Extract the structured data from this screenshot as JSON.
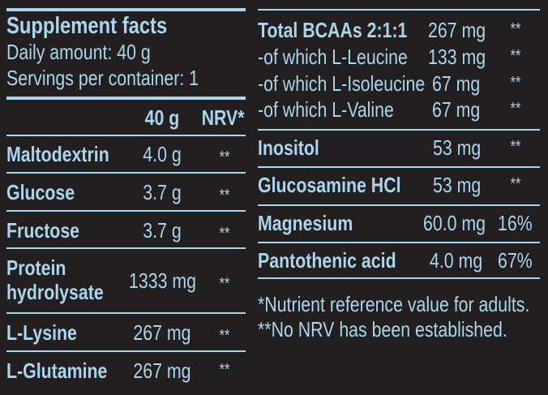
{
  "colors": {
    "background": "#231f20",
    "text": "#a9d5ee"
  },
  "left": {
    "title": "Supplement facts",
    "daily_amount": "Daily amount: 40 g",
    "servings": "Servings per container: 1",
    "header": {
      "amount": "40 g",
      "nrv": "NRV*"
    },
    "rows": [
      {
        "name": "Maltodextrin",
        "amount": "4.0 g",
        "nrv": "**"
      },
      {
        "name": "Glucose",
        "amount": "3.7 g",
        "nrv": "**"
      },
      {
        "name": "Fructose",
        "amount": "3.7 g",
        "nrv": "**"
      },
      {
        "name": "Protein",
        "name2": "hydrolysate",
        "amount": "1333 mg",
        "nrv": "**"
      },
      {
        "name": "L-Lysine",
        "amount": "267 mg",
        "nrv": "**"
      },
      {
        "name": "L-Glutamine",
        "amount": "267 mg",
        "nrv": "**"
      }
    ]
  },
  "right": {
    "rows": [
      {
        "name": "Total BCAAs 2:1:1",
        "amount": "267 mg",
        "nrv": "**"
      },
      {
        "name": "-of which L-Leucine",
        "amount": "133 mg",
        "nrv": "**"
      },
      {
        "name": "-of which L-Isoleucine",
        "amount": "67 mg",
        "nrv": "**"
      },
      {
        "name": "-of which L-Valine",
        "amount": "67 mg",
        "nrv": "**"
      },
      {
        "name": "Inositol",
        "amount": "53 mg",
        "nrv": "**"
      },
      {
        "name": "Glucosamine HCl",
        "amount": "53 mg",
        "nrv": "**"
      },
      {
        "name": "Magnesium",
        "amount": "60.0 mg",
        "nrv": "16%"
      },
      {
        "name": "Pantothenic acid",
        "amount": "4.0 mg",
        "nrv": "67%"
      }
    ],
    "footnotes": [
      "*Nutrient reference value for adults.",
      "**No NRV has been established."
    ]
  }
}
